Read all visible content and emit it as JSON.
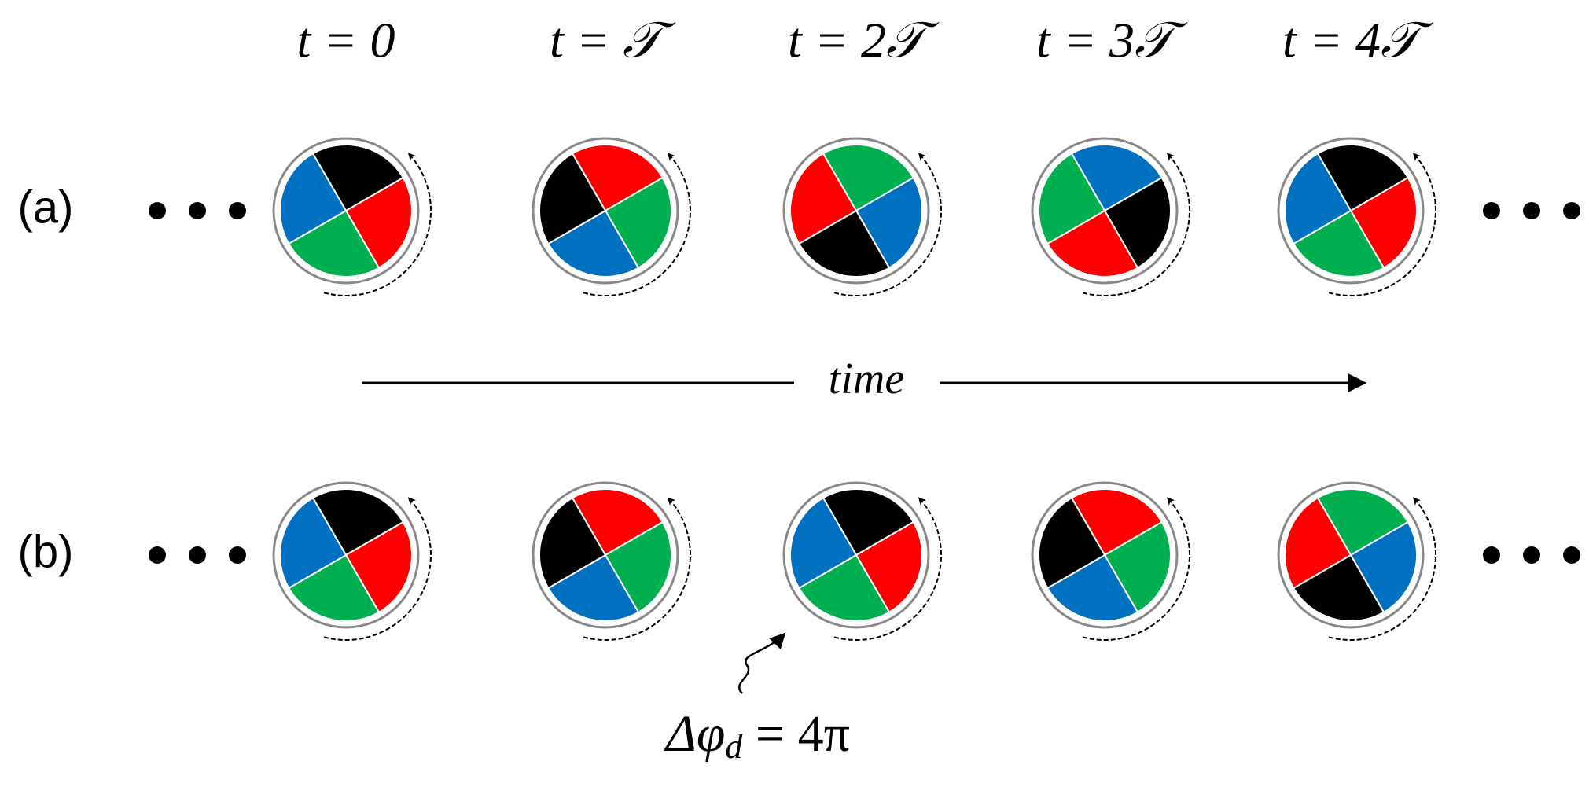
{
  "column_labels": [
    "t = 0",
    "t = 𝒯",
    "t = 2𝒯",
    "t = 3𝒯",
    "t = 4𝒯"
  ],
  "rows": [
    {
      "label": "(a)"
    },
    {
      "label": "(b)"
    }
  ],
  "axis_label": "time",
  "annotation": {
    "symbol": "Δφ",
    "subscript": "d",
    "rest": " = 4π"
  }
}
